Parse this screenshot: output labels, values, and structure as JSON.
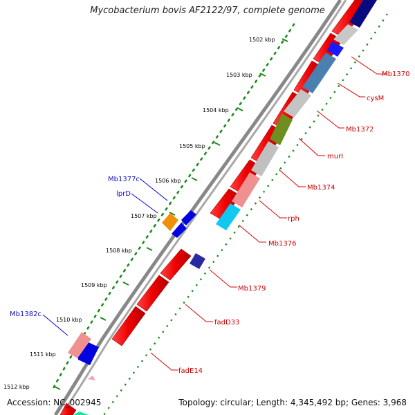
{
  "title": "Mycobacterium bovis AF2122/97, complete genome",
  "footer": {
    "accession": "Accession: NC_002945",
    "topology": "Topology: circular; Length: 4,345,492 bp; Genes: 3,968"
  },
  "colors": {
    "background": "#ffffff",
    "backbone": "#8c8c8c",
    "tick": "#1a8a1a",
    "forward_label": "#cc0000",
    "reverse_label": "#1010c0",
    "leader_forward": "#dd0000",
    "leader_reverse": "#0000dd"
  },
  "kbp_ticks": [
    {
      "label": "1502 kbp"
    },
    {
      "label": "1503 kbp"
    },
    {
      "label": "1504 kbp"
    },
    {
      "label": "1505 kbp"
    },
    {
      "label": "1506 kbp"
    },
    {
      "label": "1507 kbp"
    },
    {
      "label": "1508 kbp"
    },
    {
      "label": "1509 kbp"
    },
    {
      "label": "1510 kbp"
    },
    {
      "label": "1511 kbp"
    },
    {
      "label": "1512 kbp"
    }
  ],
  "gene_labels_forward": [
    {
      "label": "Mb1370"
    },
    {
      "label": "cysM"
    },
    {
      "label": "Mb1372"
    },
    {
      "label": "murI"
    },
    {
      "label": "Mb1374"
    },
    {
      "label": "rph"
    },
    {
      "label": "Mb1376"
    },
    {
      "label": "Mb1379"
    },
    {
      "label": "fadD33"
    },
    {
      "label": "fadE14"
    }
  ],
  "gene_labels_reverse": [
    {
      "label": "Mb1377c"
    },
    {
      "label": "lprD"
    },
    {
      "label": "Mb1382c"
    }
  ]
}
